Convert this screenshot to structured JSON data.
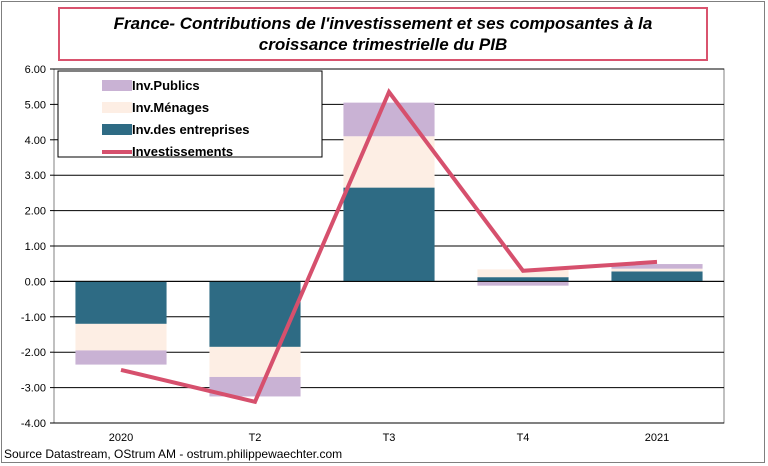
{
  "chart_data": {
    "type": "bar",
    "title_lines": [
      "France- Contributions de l'investissement et ses composantes à la",
      "croissance trimestrielle du PIB"
    ],
    "categories": [
      "2020",
      "T2",
      "T3",
      "T4",
      "2021"
    ],
    "y_ticks": [
      "6.00",
      "5.00",
      "4.00",
      "3.00",
      "2.00",
      "1.00",
      "0.00",
      "-1.00",
      "-2.00",
      "-3.00",
      "-4.00"
    ],
    "ylim": [
      -4,
      6
    ],
    "grid": true,
    "legend_position": "top-left",
    "stacked": true,
    "series": [
      {
        "name": "Inv.des entreprises",
        "kind": "bar",
        "color": "#2e6b84",
        "values": [
          -1.2,
          -1.85,
          2.65,
          0.12,
          0.28
        ]
      },
      {
        "name": "Inv.Ménages",
        "kind": "bar",
        "color": "#fdeee4",
        "values": [
          -0.75,
          -0.85,
          1.45,
          0.22,
          0.08
        ]
      },
      {
        "name": "Inv.Publics",
        "kind": "bar",
        "color": "#c9b2d4",
        "values": [
          -0.4,
          -0.55,
          0.95,
          -0.12,
          0.13
        ]
      },
      {
        "name": "Investissements",
        "kind": "line",
        "color": "#d6506d",
        "values": [
          -2.5,
          -3.4,
          5.35,
          0.3,
          0.55
        ]
      }
    ],
    "legend_order": [
      "Inv.Publics",
      "Inv.Ménages",
      "Inv.des entreprises",
      "Investissements"
    ]
  },
  "source": "Source Datastream, OStrum AM - ostrum.philippewaechter.com"
}
